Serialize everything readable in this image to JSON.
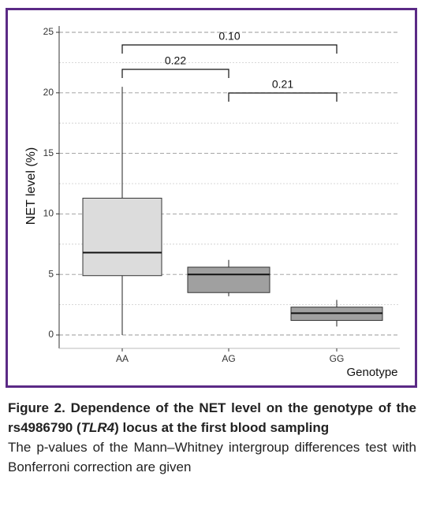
{
  "chart_data": {
    "type": "box",
    "y_label": "NET level (%)",
    "x_label": "Genotype",
    "categories": [
      "AA",
      "AG",
      "GG"
    ],
    "boxes": [
      {
        "low": 0,
        "q1": 4.9,
        "median": 6.8,
        "q3": 11.3,
        "high": 20.5,
        "color": "#dcdcdc"
      },
      {
        "low": 3.2,
        "q1": 3.5,
        "median": 5.0,
        "q3": 5.6,
        "high": 6.2,
        "color": "#a0a0a0"
      },
      {
        "low": 0.7,
        "q1": 1.2,
        "median": 1.8,
        "q3": 2.3,
        "high": 2.9,
        "color": "#a0a0a0"
      }
    ],
    "ylim": [
      0,
      25
    ],
    "yticks": [
      0,
      5,
      10,
      15,
      20,
      25
    ],
    "minor_yticks": [
      2.5,
      7.5,
      12.5,
      17.5,
      22.5
    ],
    "grid": true,
    "comparisons": [
      {
        "from": 0,
        "to": 2,
        "label": "0.10"
      },
      {
        "from": 0,
        "to": 1,
        "label": "0.22"
      },
      {
        "from": 1,
        "to": 2,
        "label": "0.21"
      }
    ]
  },
  "caption": {
    "title_before": "Figure 2. Dependence of the NET level on the genotype of the rs4986790 (",
    "title_italic": "TLR4",
    "title_after": ") locus at the first blood sampling",
    "text": "The p-values of the Mann–Whitney intergroup differences test with Bonferroni correction are given"
  }
}
